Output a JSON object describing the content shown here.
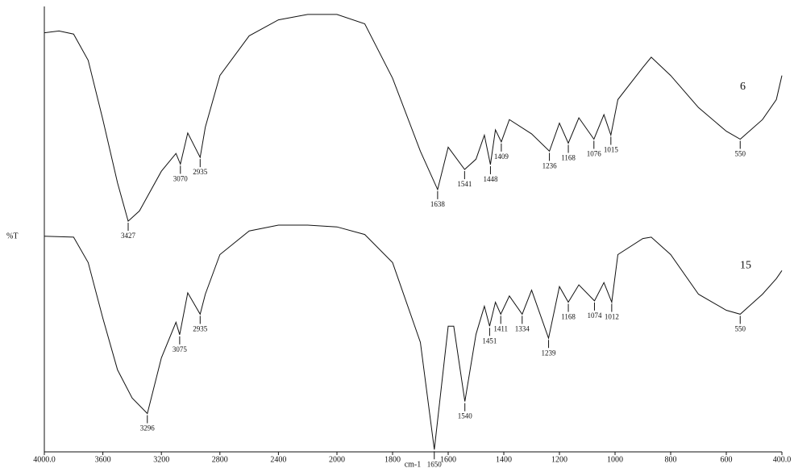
{
  "chart_data": {
    "type": "line",
    "x_label": "cm-1",
    "y_label": "%T",
    "xlim": [
      4000,
      400
    ],
    "scale_change_at": 2000,
    "xticks": [
      {
        "value": 4000,
        "label": "4000.0"
      },
      3600,
      3200,
      2800,
      2400,
      2000,
      1800,
      1600,
      1400,
      1200,
      1000,
      800,
      600,
      {
        "value": 400,
        "label": "400.0"
      }
    ],
    "ylim": [
      0,
      100
    ],
    "series": [
      {
        "name": "6",
        "color": "#111111",
        "x": [
          4000,
          3900,
          3800,
          3700,
          3600,
          3500,
          3427,
          3350,
          3200,
          3100,
          3070,
          3020,
          2935,
          2900,
          2800,
          2600,
          2400,
          2200,
          2000,
          1900,
          1800,
          1700,
          1638,
          1600,
          1541,
          1500,
          1470,
          1448,
          1430,
          1409,
          1380,
          1300,
          1236,
          1200,
          1168,
          1130,
          1076,
          1040,
          1015,
          990,
          900,
          870,
          800,
          700,
          600,
          550,
          470,
          420,
          400
        ],
        "values": [
          94.1,
          94.5,
          93.8,
          87.9,
          74.6,
          60.4,
          51.8,
          54.1,
          63.0,
          67.0,
          64.6,
          71.6,
          66.1,
          72.9,
          84.5,
          93.4,
          97.0,
          98.2,
          98.2,
          96.1,
          83.9,
          67.5,
          58.9,
          68.4,
          63.4,
          65.7,
          71.1,
          64.5,
          72.3,
          69.6,
          74.6,
          71.4,
          67.5,
          73.8,
          69.3,
          75.0,
          70.2,
          75.7,
          71.1,
          79.1,
          86.3,
          88.6,
          84.5,
          77.3,
          72.0,
          70.2,
          74.6,
          79.1,
          84.5
        ],
        "peaks": [
          3427,
          3070,
          2935,
          1638,
          1541,
          1448,
          1409,
          1236,
          1168,
          1076,
          1015,
          550
        ]
      },
      {
        "name": "15",
        "color": "#111111",
        "x": [
          4000,
          3800,
          3700,
          3600,
          3500,
          3400,
          3296,
          3200,
          3100,
          3075,
          3020,
          2935,
          2900,
          2800,
          2600,
          2400,
          2200,
          2000,
          1900,
          1800,
          1700,
          1650,
          1600,
          1580,
          1540,
          1500,
          1470,
          1451,
          1430,
          1411,
          1380,
          1334,
          1300,
          1239,
          1200,
          1168,
          1130,
          1074,
          1040,
          1012,
          990,
          900,
          870,
          800,
          700,
          600,
          550,
          470,
          420,
          400
        ],
        "values": [
          48.4,
          48.2,
          42.5,
          30.0,
          18.4,
          12.1,
          8.6,
          21.1,
          29.1,
          26.3,
          35.7,
          30.9,
          35.4,
          44.3,
          49.6,
          50.9,
          50.9,
          50.5,
          48.8,
          42.5,
          24.6,
          0.5,
          28.2,
          28.2,
          11.3,
          26.4,
          32.7,
          28.2,
          33.6,
          30.9,
          35.0,
          30.9,
          36.3,
          25.5,
          37.1,
          33.6,
          37.5,
          33.9,
          38.0,
          33.6,
          44.3,
          47.9,
          48.2,
          44.3,
          35.4,
          31.8,
          30.9,
          35.4,
          38.9,
          40.7
        ],
        "peaks": [
          3296,
          3075,
          2935,
          1650,
          1540,
          1451,
          1411,
          1334,
          1239,
          1168,
          1074,
          1012,
          550
        ]
      }
    ]
  }
}
